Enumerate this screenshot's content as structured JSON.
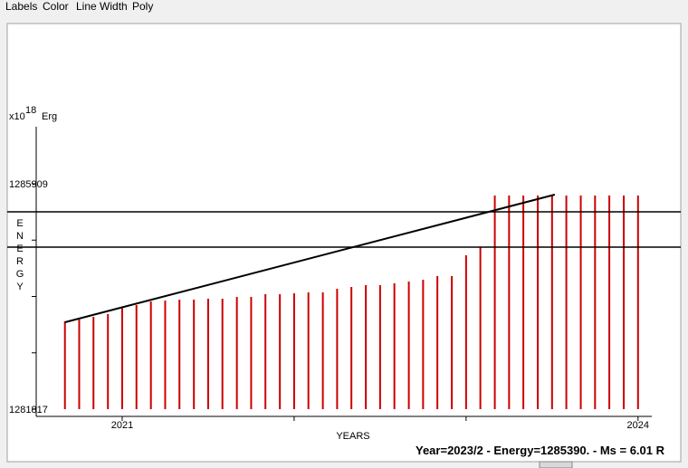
{
  "menu": [
    "Labels",
    "Color",
    "Line Width",
    "Poly"
  ],
  "chart_data": {
    "type": "bar",
    "x_label": "YEARS",
    "y_label": "ENERGY",
    "y_unit": "x10",
    "y_unit_exp": "18",
    "y_unit_name": "Erg",
    "status": "Year=2023/2 - Energy=1285390. - Ms = 6.01 R",
    "color": "#cc0000",
    "x": [
      2020.667,
      2020.75,
      2020.833,
      2020.917,
      2021.0,
      2021.083,
      2021.167,
      2021.25,
      2021.333,
      2021.417,
      2021.5,
      2021.583,
      2021.667,
      2021.75,
      2021.833,
      2021.917,
      2022.0,
      2022.083,
      2022.167,
      2022.25,
      2022.333,
      2022.417,
      2022.5,
      2022.583,
      2022.667,
      2022.75,
      2022.833,
      2022.917,
      2023.0,
      2023.083,
      2023.167,
      2023.25,
      2023.333,
      2023.417,
      2023.5,
      2023.583,
      2023.667,
      2023.75,
      2023.833,
      2023.917,
      2024.0
    ],
    "values": [
      1283412,
      1283444,
      1283494,
      1283543,
      1283675,
      1283707,
      1283773,
      1283790,
      1283806,
      1283806,
      1283822,
      1283822,
      1283855,
      1283855,
      1283905,
      1283905,
      1283921,
      1283937,
      1283937,
      1284003,
      1284036,
      1284069,
      1284069,
      1284102,
      1284135,
      1284168,
      1284233,
      1284233,
      1284611,
      1284759,
      1285696,
      1285696,
      1285696,
      1285696,
      1285696,
      1285696,
      1285696,
      1285696,
      1285696,
      1285696,
      1285696
    ],
    "trend": {
      "color": "#000000",
      "x": [
        2020.667,
        2023.516
      ],
      "values": [
        1283395,
        1285712
      ]
    },
    "hlines": [
      1285400,
      1284759
    ],
    "xlim": [
      2020.5,
      2024.08
    ],
    "xticks": [
      2021,
      2024
    ],
    "xminor": [
      2022,
      2023
    ],
    "ylim": [
      1281686,
      1286944
    ],
    "yticks": [
      1281817,
      1285909
    ],
    "yminor": [
      1282840,
      1283863,
      1284886
    ]
  }
}
